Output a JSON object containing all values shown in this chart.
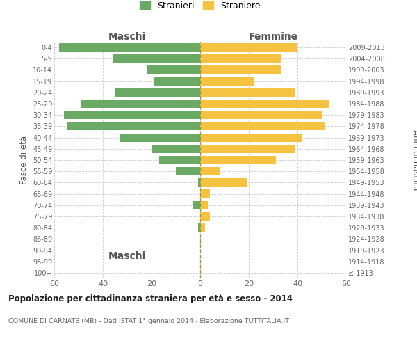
{
  "age_groups": [
    "100+",
    "95-99",
    "90-94",
    "85-89",
    "80-84",
    "75-79",
    "70-74",
    "65-69",
    "60-64",
    "55-59",
    "50-54",
    "45-49",
    "40-44",
    "35-39",
    "30-34",
    "25-29",
    "20-24",
    "15-19",
    "10-14",
    "5-9",
    "0-4"
  ],
  "birth_years": [
    "≤ 1913",
    "1914-1918",
    "1919-1923",
    "1924-1928",
    "1929-1933",
    "1934-1938",
    "1939-1943",
    "1944-1948",
    "1949-1953",
    "1954-1958",
    "1959-1963",
    "1964-1968",
    "1969-1973",
    "1974-1978",
    "1979-1983",
    "1984-1988",
    "1989-1993",
    "1994-1998",
    "1999-2003",
    "2004-2008",
    "2009-2013"
  ],
  "maschi": [
    0,
    0,
    0,
    0,
    1,
    0,
    3,
    0,
    1,
    10,
    17,
    20,
    33,
    55,
    56,
    49,
    35,
    19,
    22,
    36,
    58
  ],
  "femmine": [
    0,
    0,
    0,
    0,
    2,
    4,
    3,
    4,
    19,
    8,
    31,
    39,
    42,
    51,
    50,
    53,
    39,
    22,
    33,
    33,
    40
  ],
  "male_color": "#6aaa64",
  "female_color": "#f5c242",
  "background_color": "#ffffff",
  "grid_color": "#cccccc",
  "title": "Popolazione per cittadinanza straniera per età e sesso - 2014",
  "subtitle": "COMUNE DI CARNATE (MB) - Dati ISTAT 1° gennaio 2014 - Elaborazione TUTTITALIA.IT",
  "xlabel_left": "Maschi",
  "xlabel_right": "Femmine",
  "ylabel_left": "Fasce di età",
  "ylabel_right": "Anni di nascita",
  "legend_male": "Stranieri",
  "legend_female": "Straniere",
  "xlim": 60
}
